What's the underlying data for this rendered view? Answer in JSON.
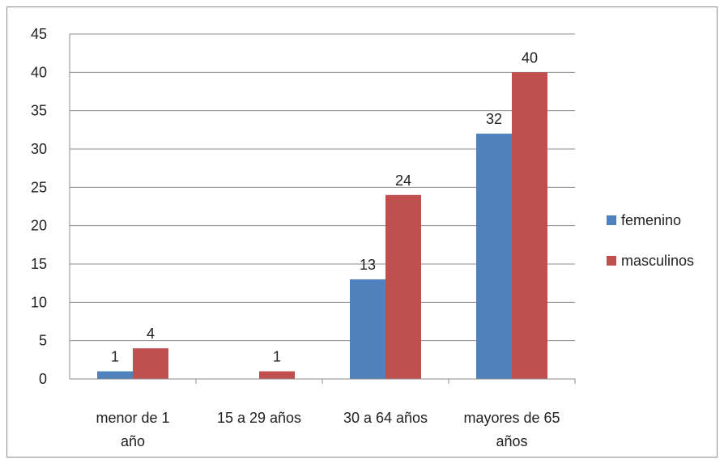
{
  "chart_data": {
    "type": "bar",
    "categories": [
      [
        "menor de 1",
        "año"
      ],
      [
        "15 a 29 años"
      ],
      [
        "30 a 64 años"
      ],
      [
        "mayores de 65",
        "años"
      ]
    ],
    "series": [
      {
        "name": "femenino",
        "values": [
          1,
          0,
          13,
          32
        ],
        "labels": [
          "1",
          null,
          "13",
          "32"
        ],
        "color": "#4f81bd"
      },
      {
        "name": "masculinos",
        "values": [
          4,
          1,
          24,
          40
        ],
        "labels": [
          "4",
          "1",
          "24",
          "40"
        ],
        "color": "#c0504d"
      }
    ],
    "ylim": [
      0,
      45
    ],
    "yticks": [
      0,
      5,
      10,
      15,
      20,
      25,
      30,
      35,
      40,
      45
    ],
    "grid": true,
    "legend_position": "right"
  }
}
